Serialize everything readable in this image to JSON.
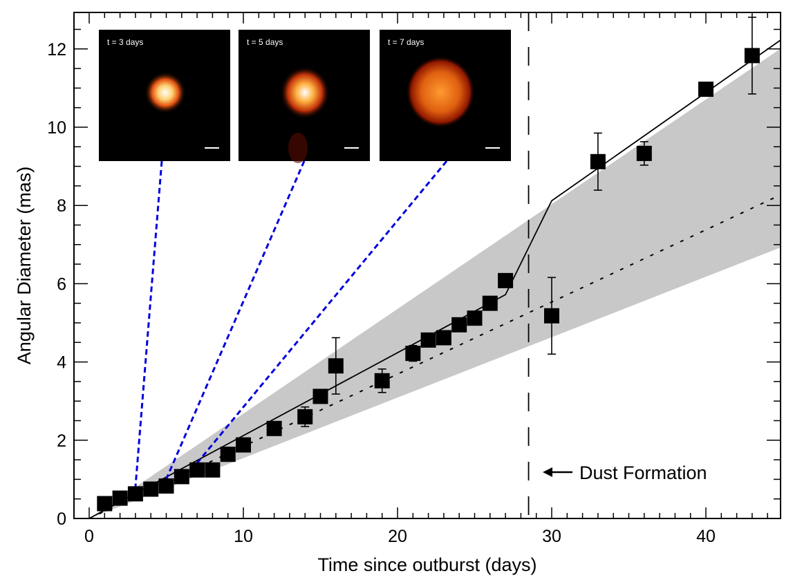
{
  "chart_data": {
    "type": "scatter",
    "title": "",
    "xlabel": "Time since outburst (days)",
    "ylabel": "Angular Diameter (mas)",
    "xlim": [
      -1,
      45
    ],
    "ylim": [
      0,
      12.9
    ],
    "xticks": [
      0,
      10,
      20,
      30,
      40
    ],
    "yticks": [
      0,
      2,
      4,
      6,
      8,
      10,
      12
    ],
    "grid": false,
    "series": [
      {
        "name": "measurements",
        "marker": "square",
        "points": [
          {
            "x": 1,
            "y": 0.38
          },
          {
            "x": 2,
            "y": 0.52
          },
          {
            "x": 3,
            "y": 0.63
          },
          {
            "x": 4,
            "y": 0.75
          },
          {
            "x": 5,
            "y": 0.83
          },
          {
            "x": 6,
            "y": 1.07
          },
          {
            "x": 7,
            "y": 1.24
          },
          {
            "x": 8,
            "y": 1.24
          },
          {
            "x": 9,
            "y": 1.64
          },
          {
            "x": 10,
            "y": 1.88
          },
          {
            "x": 12,
            "y": 2.3
          },
          {
            "x": 14,
            "y": 2.6,
            "err": 0.25
          },
          {
            "x": 15,
            "y": 3.12
          },
          {
            "x": 16,
            "y": 3.9,
            "err": 0.72
          },
          {
            "x": 19,
            "y": 3.52,
            "err": 0.3
          },
          {
            "x": 21,
            "y": 4.22,
            "err": 0.2
          },
          {
            "x": 22,
            "y": 4.56
          },
          {
            "x": 23,
            "y": 4.62
          },
          {
            "x": 24,
            "y": 4.95
          },
          {
            "x": 25,
            "y": 5.12
          },
          {
            "x": 26,
            "y": 5.5
          },
          {
            "x": 27,
            "y": 6.08
          },
          {
            "x": 30,
            "y": 5.18,
            "err": 0.98
          },
          {
            "x": 33,
            "y": 9.12,
            "err": 0.73
          },
          {
            "x": 36,
            "y": 9.33,
            "err": 0.3
          },
          {
            "x": 40,
            "y": 10.97
          },
          {
            "x": 43,
            "y": 11.83,
            "err": 0.98
          }
        ]
      },
      {
        "name": "model-solid",
        "style": "solid",
        "points": [
          {
            "x": 0,
            "y": 0
          },
          {
            "x": 27,
            "y": 5.72
          },
          {
            "x": 30,
            "y": 8.12
          },
          {
            "x": 45,
            "y": 12.27
          }
        ]
      },
      {
        "name": "model-dotted",
        "style": "dotted",
        "points": [
          {
            "x": 0,
            "y": 0
          },
          {
            "x": 45,
            "y": 8.3
          }
        ]
      },
      {
        "name": "uncertainty-band",
        "style": "fill",
        "upper": [
          {
            "x": 0,
            "y": 0
          },
          {
            "x": 45,
            "y": 12.05
          }
        ],
        "lower": [
          {
            "x": 0,
            "y": 0
          },
          {
            "x": 45,
            "y": 6.95
          }
        ],
        "color": "#c8c8c8"
      }
    ],
    "vertical_line": {
      "x": 28.5,
      "style": "dashed"
    },
    "annotations": [
      {
        "text": "Dust Formation",
        "arrow": "left"
      }
    ],
    "insets": [
      {
        "label": "t = 3 days",
        "epoch": 3
      },
      {
        "label": "t = 5 days",
        "epoch": 5
      },
      {
        "label": "t = 7 days",
        "epoch": 7
      }
    ]
  },
  "colors": {
    "marker": "#000000",
    "band": "#c8c8c8",
    "connector": "#0000dd",
    "inset_bg": "#000000"
  }
}
